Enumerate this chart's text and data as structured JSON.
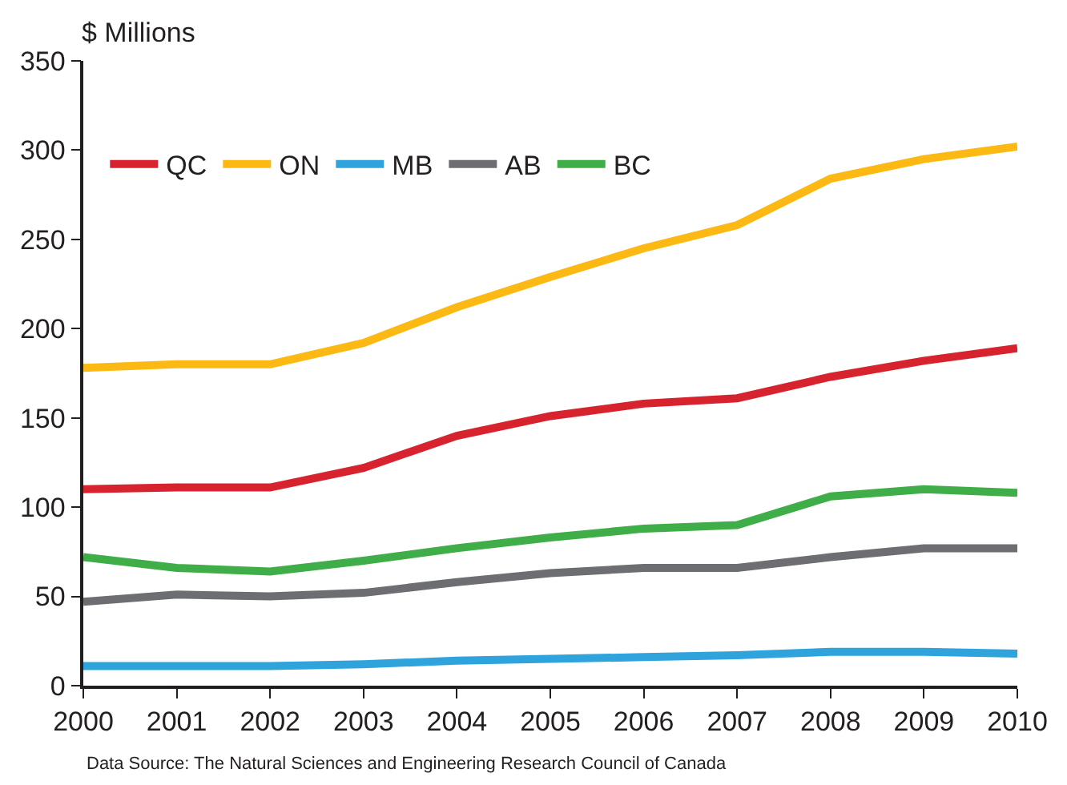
{
  "chart_data": {
    "type": "line",
    "ylabel": "$ Millions",
    "x": [
      2000,
      2001,
      2002,
      2003,
      2004,
      2005,
      2006,
      2007,
      2008,
      2009,
      2010
    ],
    "xlim": [
      2000,
      2010
    ],
    "xticks": [
      2000,
      2001,
      2002,
      2003,
      2004,
      2005,
      2006,
      2007,
      2008,
      2009,
      2010
    ],
    "ylim": [
      0,
      350
    ],
    "yticks": [
      0,
      50,
      100,
      150,
      200,
      250,
      300,
      350
    ],
    "legend": "top left",
    "marker": "none",
    "line_style": "solid",
    "series": [
      {
        "name": "QC",
        "color": "#d7232e",
        "values": [
          110,
          111,
          111,
          122,
          140,
          151,
          158,
          161,
          173,
          182,
          189
        ]
      },
      {
        "name": "ON",
        "color": "#fdb913",
        "values": [
          178,
          180,
          180,
          192,
          212,
          229,
          245,
          258,
          284,
          295,
          302
        ]
      },
      {
        "name": "MB",
        "color": "#2ea3dc",
        "values": [
          11,
          11,
          11,
          12,
          14,
          15,
          16,
          17,
          19,
          19,
          18
        ]
      },
      {
        "name": "AB",
        "color": "#6d6e71",
        "values": [
          47,
          51,
          50,
          52,
          58,
          63,
          66,
          66,
          72,
          77,
          77
        ]
      },
      {
        "name": "BC",
        "color": "#3fae49",
        "values": [
          72,
          66,
          64,
          70,
          77,
          83,
          88,
          90,
          106,
          110,
          108
        ]
      }
    ],
    "annotations": [
      "Data Source: The Natural Sciences and Engineering Research Council of Canada"
    ]
  }
}
